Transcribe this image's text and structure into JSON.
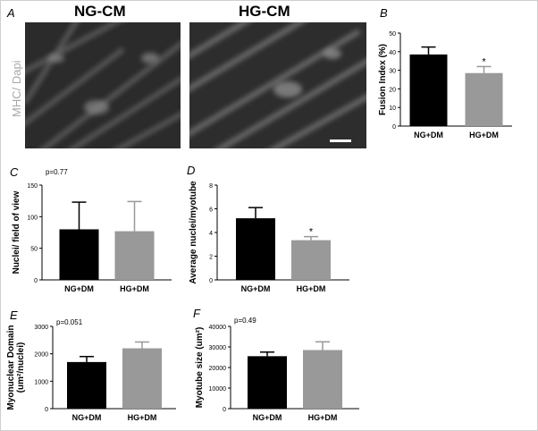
{
  "panel_a": {
    "letter": "A",
    "side_label": "MHC/ Dapi",
    "images": [
      {
        "title": "NG-CM"
      },
      {
        "title": "HG-CM"
      }
    ]
  },
  "chart_data": [
    {
      "panel": "B",
      "type": "bar",
      "categories": [
        "NG+DM",
        "HG+DM"
      ],
      "values": [
        38.5,
        28.5
      ],
      "errors": [
        4,
        3.5
      ],
      "colors": [
        "#000000",
        "#999999"
      ],
      "significance": [
        "",
        "*"
      ],
      "annotation": "",
      "ylabel": "Fusion Index (%)",
      "ylim": [
        0,
        50
      ],
      "yticks": [
        "0",
        "10",
        "20",
        "30",
        "40",
        "50"
      ]
    },
    {
      "panel": "C",
      "type": "bar",
      "categories": [
        "NG+DM",
        "HG+DM"
      ],
      "values": [
        80,
        77
      ],
      "errors": [
        43,
        47
      ],
      "colors": [
        "#000000",
        "#999999"
      ],
      "significance": [
        "",
        ""
      ],
      "annotation": "p=0.77",
      "ylabel": "Nuclei/ field of view",
      "ylim": [
        0,
        150
      ],
      "yticks": [
        "0",
        "50",
        "100",
        "150"
      ]
    },
    {
      "panel": "D",
      "type": "bar",
      "categories": [
        "NG+DM",
        "HG+DM"
      ],
      "values": [
        5.2,
        3.35
      ],
      "errors": [
        0.9,
        0.3
      ],
      "colors": [
        "#000000",
        "#999999"
      ],
      "significance": [
        "",
        "*"
      ],
      "annotation": "",
      "ylabel": "Average nuclei/myotube",
      "ylim": [
        0,
        8
      ],
      "yticks": [
        "0",
        "2",
        "4",
        "6",
        "8"
      ]
    },
    {
      "panel": "E",
      "type": "bar",
      "categories": [
        "NG+DM",
        "HG+DM"
      ],
      "values": [
        1700,
        2200
      ],
      "errors": [
        200,
        230
      ],
      "colors": [
        "#000000",
        "#999999"
      ],
      "significance": [
        "",
        ""
      ],
      "annotation": "p=0.051",
      "ylabel": [
        "Myonuclear Domain",
        "(um²/nuclei)"
      ],
      "ylim": [
        0,
        3000
      ],
      "yticks": [
        "0",
        "1000",
        "2000",
        "3000"
      ]
    },
    {
      "panel": "F",
      "type": "bar",
      "categories": [
        "NG+DM",
        "HG+DM"
      ],
      "values": [
        25500,
        28500
      ],
      "errors": [
        2000,
        4000
      ],
      "colors": [
        "#000000",
        "#999999"
      ],
      "significance": [
        "",
        ""
      ],
      "annotation": "p=0.49",
      "ylabel": "Myotube size (um²)",
      "ylim": [
        0,
        40000
      ],
      "yticks": [
        "0",
        "10000",
        "20000",
        "30000",
        "40000"
      ]
    }
  ]
}
